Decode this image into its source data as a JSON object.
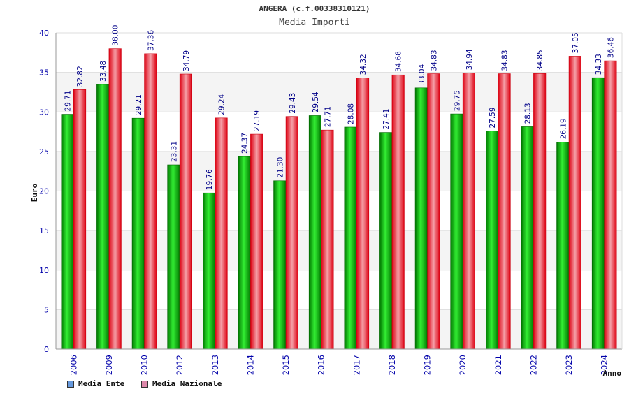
{
  "title": "ANGERA (c.f.00338310121)",
  "subtitle": "Media Importi",
  "legend": [
    {
      "label": "Media Ente",
      "color": "#6699dd"
    },
    {
      "label": "Media Nazionale",
      "color": "#dd88aa"
    }
  ],
  "chart_data": {
    "type": "bar",
    "title": "ANGERA (c.f.00338310121)",
    "subtitle": "Media Importi",
    "xlabel": "Anno",
    "ylabel": "Euro",
    "ylim": [
      0,
      40
    ],
    "yticks": [
      0,
      5,
      10,
      15,
      20,
      25,
      30,
      35,
      40
    ],
    "grid": true,
    "legend_position": "bottom-left",
    "categories": [
      "2006",
      "2009",
      "2010",
      "2012",
      "2013",
      "2014",
      "2015",
      "2016",
      "2017",
      "2018",
      "2019",
      "2020",
      "2021",
      "2022",
      "2023",
      "2024"
    ],
    "series": [
      {
        "name": "Media Ente",
        "color": "#00aa00",
        "labels": [
          "29.71",
          "33.48",
          "29.21",
          "23.31",
          "19.76",
          "24.37",
          "21.30",
          "29.54",
          "28.08",
          "27.41",
          "33.04",
          "29.75",
          "27.59",
          "28.13",
          "26.19",
          "34.33"
        ],
        "values": [
          29.71,
          33.48,
          29.21,
          23.31,
          19.76,
          24.37,
          21.3,
          29.54,
          28.08,
          27.41,
          33.04,
          29.75,
          27.59,
          28.13,
          26.19,
          34.33
        ]
      },
      {
        "name": "Media Nazionale",
        "color": "#ee1122",
        "labels": [
          "32.82",
          "38.00",
          "37.36",
          "34.79",
          "29.24",
          "27.19",
          "29.43",
          "27.71",
          "34.32",
          "34.68",
          "34.83",
          "34.94",
          "34.83",
          "34.85",
          "37.05",
          "36.46"
        ],
        "values": [
          32.82,
          38.0,
          37.36,
          34.79,
          29.24,
          27.19,
          29.43,
          27.71,
          34.32,
          34.68,
          34.83,
          34.94,
          34.83,
          34.85,
          37.05,
          36.46
        ]
      }
    ]
  }
}
